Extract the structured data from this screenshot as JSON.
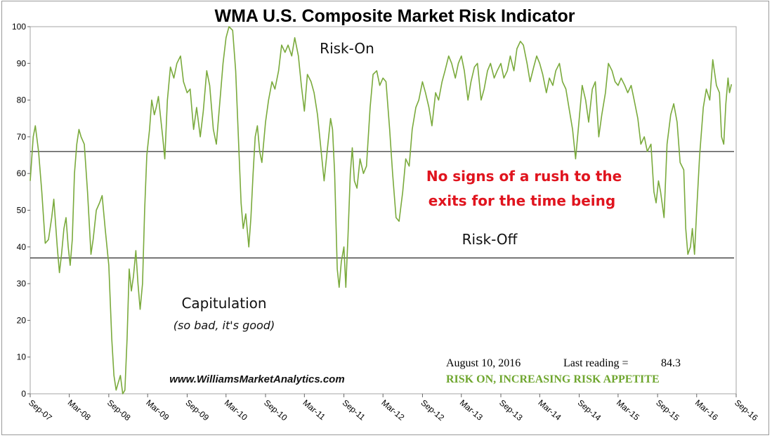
{
  "chart_data": {
    "type": "line",
    "title": "WMA U.S. Composite Market Risk Indicator",
    "xlabel": "",
    "ylabel": "",
    "ylim": [
      0,
      100
    ],
    "yticks": [
      0,
      10,
      20,
      30,
      40,
      50,
      60,
      70,
      80,
      90,
      100
    ],
    "xlim": [
      "2007-09",
      "2016-09"
    ],
    "xticks": [
      {
        "label": "Sep-07",
        "date": "2007-09"
      },
      {
        "label": "Mar-08",
        "date": "2008-03"
      },
      {
        "label": "Sep-08",
        "date": "2008-09"
      },
      {
        "label": "Mar-09",
        "date": "2009-03"
      },
      {
        "label": "Sep-09",
        "date": "2009-09"
      },
      {
        "label": "Mar-10",
        "date": "2010-03"
      },
      {
        "label": "Sep-10",
        "date": "2010-09"
      },
      {
        "label": "Mar-11",
        "date": "2011-03"
      },
      {
        "label": "Sep-11",
        "date": "2011-09"
      },
      {
        "label": "Mar-12",
        "date": "2012-03"
      },
      {
        "label": "Sep-12",
        "date": "2012-09"
      },
      {
        "label": "Mar-13",
        "date": "2013-03"
      },
      {
        "label": "Sep-13",
        "date": "2013-09"
      },
      {
        "label": "Mar-14",
        "date": "2014-03"
      },
      {
        "label": "Sep-14",
        "date": "2014-09"
      },
      {
        "label": "Mar-15",
        "date": "2015-03"
      },
      {
        "label": "Sep-15",
        "date": "2015-09"
      },
      {
        "label": "Mar-16",
        "date": "2016-03"
      },
      {
        "label": "Sep-16",
        "date": "2016-09"
      }
    ],
    "grid": false,
    "line_color": "#7aaa3c",
    "threshold_color": "#000000",
    "thresholds": [
      {
        "value": 66,
        "label": "Risk-On"
      },
      {
        "value": 37,
        "label": "Risk-Off"
      }
    ],
    "series": [
      {
        "values": [
          [
            "2007-09-01",
            58
          ],
          [
            "2007-09-15",
            70
          ],
          [
            "2007-09-25",
            73
          ],
          [
            "2007-10-10",
            66
          ],
          [
            "2007-10-25",
            55
          ],
          [
            "2007-11-10",
            41
          ],
          [
            "2007-11-25",
            42
          ],
          [
            "2007-12-10",
            48
          ],
          [
            "2007-12-20",
            53
          ],
          [
            "2008-01-05",
            40
          ],
          [
            "2008-01-15",
            33
          ],
          [
            "2008-01-25",
            38
          ],
          [
            "2008-02-05",
            45
          ],
          [
            "2008-02-15",
            48
          ],
          [
            "2008-02-25",
            40
          ],
          [
            "2008-03-05",
            35
          ],
          [
            "2008-03-15",
            42
          ],
          [
            "2008-03-25",
            60
          ],
          [
            "2008-04-05",
            68
          ],
          [
            "2008-04-15",
            72
          ],
          [
            "2008-04-25",
            70
          ],
          [
            "2008-05-10",
            68
          ],
          [
            "2008-05-25",
            55
          ],
          [
            "2008-06-10",
            38
          ],
          [
            "2008-06-20",
            42
          ],
          [
            "2008-07-05",
            50
          ],
          [
            "2008-07-20",
            52
          ],
          [
            "2008-08-01",
            54
          ],
          [
            "2008-08-15",
            45
          ],
          [
            "2008-09-01",
            35
          ],
          [
            "2008-09-15",
            15
          ],
          [
            "2008-09-25",
            5
          ],
          [
            "2008-10-05",
            1
          ],
          [
            "2008-10-15",
            3
          ],
          [
            "2008-10-25",
            5
          ],
          [
            "2008-11-05",
            0
          ],
          [
            "2008-11-15",
            1
          ],
          [
            "2008-11-25",
            15
          ],
          [
            "2008-12-05",
            34
          ],
          [
            "2008-12-15",
            28
          ],
          [
            "2008-12-25",
            32
          ],
          [
            "2009-01-05",
            39
          ],
          [
            "2009-01-15",
            30
          ],
          [
            "2009-01-25",
            23
          ],
          [
            "2009-02-05",
            30
          ],
          [
            "2009-02-15",
            50
          ],
          [
            "2009-02-25",
            65
          ],
          [
            "2009-03-10",
            72
          ],
          [
            "2009-03-20",
            80
          ],
          [
            "2009-04-01",
            76
          ],
          [
            "2009-04-10",
            78
          ],
          [
            "2009-04-20",
            81
          ],
          [
            "2009-05-01",
            75
          ],
          [
            "2009-05-10",
            70
          ],
          [
            "2009-05-20",
            64
          ],
          [
            "2009-06-01",
            80
          ],
          [
            "2009-06-15",
            89
          ],
          [
            "2009-07-01",
            86
          ],
          [
            "2009-07-15",
            90
          ],
          [
            "2009-08-01",
            92
          ],
          [
            "2009-08-15",
            85
          ],
          [
            "2009-09-01",
            82
          ],
          [
            "2009-09-15",
            83
          ],
          [
            "2009-10-01",
            72
          ],
          [
            "2009-10-15",
            78
          ],
          [
            "2009-11-01",
            70
          ],
          [
            "2009-11-15",
            77
          ],
          [
            "2009-12-01",
            88
          ],
          [
            "2009-12-15",
            84
          ],
          [
            "2010-01-01",
            72
          ],
          [
            "2010-01-15",
            68
          ],
          [
            "2010-02-01",
            80
          ],
          [
            "2010-02-15",
            90
          ],
          [
            "2010-03-01",
            97
          ],
          [
            "2010-03-15",
            100
          ],
          [
            "2010-04-01",
            99
          ],
          [
            "2010-04-15",
            88
          ],
          [
            "2010-05-01",
            65
          ],
          [
            "2010-05-10",
            52
          ],
          [
            "2010-05-20",
            45
          ],
          [
            "2010-06-01",
            49
          ],
          [
            "2010-06-15",
            40
          ],
          [
            "2010-06-25",
            48
          ],
          [
            "2010-07-05",
            60
          ],
          [
            "2010-07-15",
            70
          ],
          [
            "2010-07-25",
            73
          ],
          [
            "2010-08-05",
            66
          ],
          [
            "2010-08-15",
            63
          ],
          [
            "2010-09-01",
            74
          ],
          [
            "2010-09-15",
            80
          ],
          [
            "2010-10-01",
            85
          ],
          [
            "2010-10-15",
            83
          ],
          [
            "2010-11-01",
            88
          ],
          [
            "2010-11-15",
            95
          ],
          [
            "2010-12-01",
            93
          ],
          [
            "2010-12-15",
            95
          ],
          [
            "2011-01-01",
            92
          ],
          [
            "2011-01-15",
            97
          ],
          [
            "2011-02-01",
            92
          ],
          [
            "2011-02-15",
            84
          ],
          [
            "2011-03-01",
            77
          ],
          [
            "2011-03-15",
            87
          ],
          [
            "2011-04-01",
            85
          ],
          [
            "2011-04-15",
            82
          ],
          [
            "2011-05-01",
            76
          ],
          [
            "2011-05-15",
            68
          ],
          [
            "2011-06-01",
            58
          ],
          [
            "2011-06-15",
            66
          ],
          [
            "2011-07-01",
            75
          ],
          [
            "2011-07-10",
            72
          ],
          [
            "2011-07-20",
            60
          ],
          [
            "2011-08-01",
            34
          ],
          [
            "2011-08-10",
            29
          ],
          [
            "2011-08-20",
            36
          ],
          [
            "2011-09-01",
            40
          ],
          [
            "2011-09-10",
            29
          ],
          [
            "2011-09-20",
            43
          ],
          [
            "2011-10-01",
            60
          ],
          [
            "2011-10-10",
            67
          ],
          [
            "2011-10-20",
            58
          ],
          [
            "2011-11-01",
            56
          ],
          [
            "2011-11-15",
            64
          ],
          [
            "2011-12-01",
            60
          ],
          [
            "2011-12-15",
            62
          ],
          [
            "2012-01-01",
            78
          ],
          [
            "2012-01-15",
            87
          ],
          [
            "2012-02-01",
            88
          ],
          [
            "2012-02-15",
            84
          ],
          [
            "2012-03-01",
            86
          ],
          [
            "2012-03-15",
            85
          ],
          [
            "2012-04-01",
            72
          ],
          [
            "2012-04-15",
            60
          ],
          [
            "2012-05-01",
            48
          ],
          [
            "2012-05-15",
            47
          ],
          [
            "2012-06-01",
            55
          ],
          [
            "2012-06-15",
            64
          ],
          [
            "2012-07-01",
            62
          ],
          [
            "2012-07-15",
            72
          ],
          [
            "2012-08-01",
            78
          ],
          [
            "2012-08-15",
            80
          ],
          [
            "2012-09-01",
            85
          ],
          [
            "2012-09-15",
            82
          ],
          [
            "2012-10-01",
            78
          ],
          [
            "2012-10-15",
            73
          ],
          [
            "2012-11-01",
            82
          ],
          [
            "2012-11-15",
            80
          ],
          [
            "2012-12-01",
            85
          ],
          [
            "2012-12-15",
            88
          ],
          [
            "2013-01-01",
            92
          ],
          [
            "2013-01-15",
            90
          ],
          [
            "2013-02-01",
            86
          ],
          [
            "2013-02-15",
            90
          ],
          [
            "2013-03-01",
            92
          ],
          [
            "2013-03-15",
            88
          ],
          [
            "2013-04-01",
            80
          ],
          [
            "2013-04-15",
            85
          ],
          [
            "2013-05-01",
            89
          ],
          [
            "2013-05-15",
            90
          ],
          [
            "2013-06-01",
            80
          ],
          [
            "2013-06-15",
            83
          ],
          [
            "2013-07-01",
            88
          ],
          [
            "2013-07-15",
            90
          ],
          [
            "2013-08-01",
            86
          ],
          [
            "2013-08-15",
            88
          ],
          [
            "2013-09-01",
            90
          ],
          [
            "2013-09-15",
            86
          ],
          [
            "2013-10-01",
            88
          ],
          [
            "2013-10-15",
            92
          ],
          [
            "2013-11-01",
            88
          ],
          [
            "2013-11-15",
            94
          ],
          [
            "2013-12-01",
            96
          ],
          [
            "2013-12-15",
            95
          ],
          [
            "2014-01-01",
            90
          ],
          [
            "2014-01-15",
            85
          ],
          [
            "2014-02-01",
            89
          ],
          [
            "2014-02-15",
            92
          ],
          [
            "2014-03-01",
            90
          ],
          [
            "2014-03-15",
            87
          ],
          [
            "2014-04-01",
            82
          ],
          [
            "2014-04-15",
            86
          ],
          [
            "2014-05-01",
            84
          ],
          [
            "2014-05-15",
            88
          ],
          [
            "2014-06-01",
            90
          ],
          [
            "2014-06-15",
            85
          ],
          [
            "2014-07-01",
            83
          ],
          [
            "2014-07-15",
            78
          ],
          [
            "2014-08-01",
            72
          ],
          [
            "2014-08-15",
            64
          ],
          [
            "2014-09-01",
            75
          ],
          [
            "2014-09-15",
            84
          ],
          [
            "2014-10-01",
            80
          ],
          [
            "2014-10-15",
            74
          ],
          [
            "2014-11-01",
            83
          ],
          [
            "2014-11-15",
            85
          ],
          [
            "2014-12-01",
            70
          ],
          [
            "2014-12-15",
            76
          ],
          [
            "2015-01-01",
            82
          ],
          [
            "2015-01-15",
            90
          ],
          [
            "2015-02-01",
            88
          ],
          [
            "2015-02-15",
            85
          ],
          [
            "2015-03-01",
            84
          ],
          [
            "2015-03-15",
            86
          ],
          [
            "2015-04-01",
            84
          ],
          [
            "2015-04-15",
            82
          ],
          [
            "2015-05-01",
            84
          ],
          [
            "2015-05-15",
            80
          ],
          [
            "2015-06-01",
            75
          ],
          [
            "2015-06-15",
            68
          ],
          [
            "2015-07-01",
            70
          ],
          [
            "2015-07-15",
            66
          ],
          [
            "2015-08-01",
            68
          ],
          [
            "2015-08-15",
            55
          ],
          [
            "2015-08-25",
            52
          ],
          [
            "2015-09-05",
            58
          ],
          [
            "2015-09-15",
            55
          ],
          [
            "2015-10-01",
            48
          ],
          [
            "2015-10-15",
            68
          ],
          [
            "2015-11-01",
            76
          ],
          [
            "2015-11-15",
            79
          ],
          [
            "2015-12-01",
            74
          ],
          [
            "2015-12-15",
            63
          ],
          [
            "2016-01-01",
            61
          ],
          [
            "2016-01-10",
            45
          ],
          [
            "2016-01-20",
            38
          ],
          [
            "2016-02-01",
            40
          ],
          [
            "2016-02-10",
            45
          ],
          [
            "2016-02-20",
            38
          ],
          [
            "2016-03-01",
            50
          ],
          [
            "2016-03-15",
            65
          ],
          [
            "2016-04-01",
            78
          ],
          [
            "2016-04-15",
            83
          ],
          [
            "2016-05-01",
            80
          ],
          [
            "2016-05-15",
            91
          ],
          [
            "2016-06-01",
            84
          ],
          [
            "2016-06-15",
            82
          ],
          [
            "2016-06-25",
            70
          ],
          [
            "2016-07-05",
            68
          ],
          [
            "2016-07-15",
            79
          ],
          [
            "2016-07-25",
            86
          ],
          [
            "2016-08-01",
            82
          ],
          [
            "2016-08-10",
            84.3
          ]
        ]
      }
    ]
  },
  "labels": {
    "risk_on": "Risk-On",
    "risk_off": "Risk-Off",
    "capitulation": "Capitulation",
    "capitulation_sub": "(so bad, it's good)",
    "callout_line1": "No signs of a rush to the",
    "callout_line2": "exits for the time being",
    "website": "www.WilliamsMarketAnalytics.com",
    "reading_date": "August 10, 2016",
    "reading_label": "Last reading =",
    "reading_value": "84.3",
    "status": "RISK ON, INCREASING RISK APPETITE"
  }
}
